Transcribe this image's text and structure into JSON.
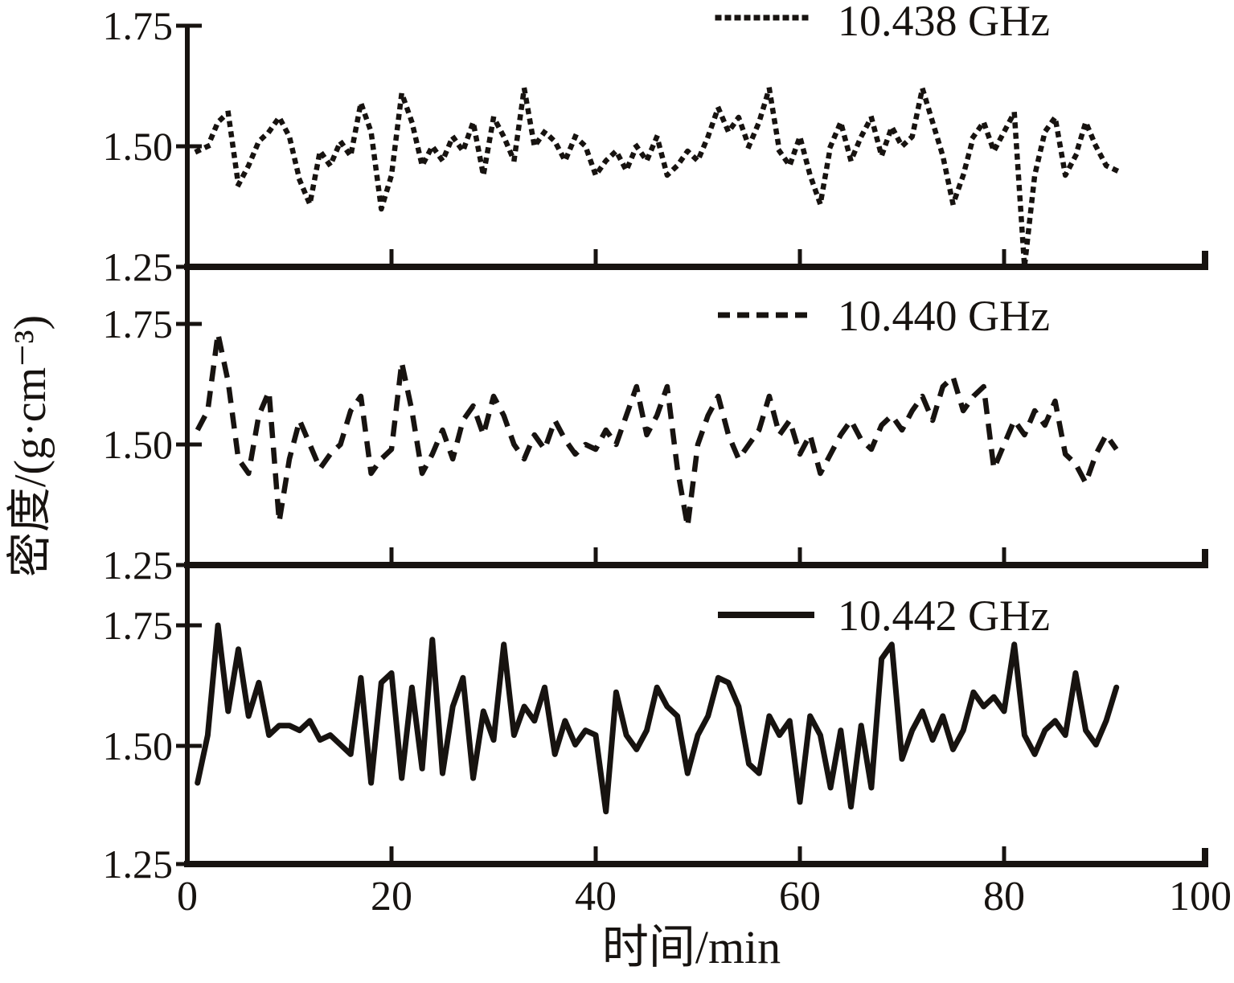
{
  "axes": {
    "y_title": "密度/(g·cm⁻³)",
    "x_title": "时间/min",
    "x_ticks": [
      "0",
      "20",
      "40",
      "60",
      "80",
      "100"
    ],
    "y_ticks": [
      "1.75",
      "1.50",
      "1.25"
    ]
  },
  "legend": {
    "items": [
      {
        "label": "10.438 GHz",
        "style": "dotted"
      },
      {
        "label": "10.440 GHz",
        "style": "dashed"
      },
      {
        "label": "10.442 GHz",
        "style": "solid"
      }
    ]
  },
  "chart_data": {
    "type": "line",
    "layout": "three vertically stacked panels sharing the x-axis, one series per panel, no grid",
    "title": "",
    "xlabel": "时间/min",
    "ylabel": "密度/(g·cm⁻³)",
    "xlim": [
      0,
      100
    ],
    "ylim_each_panel": [
      1.25,
      1.75
    ],
    "x_tick_values": [
      0,
      20,
      40,
      60,
      80,
      100
    ],
    "y_tick_values": [
      1.25,
      1.5,
      1.75
    ],
    "grid": false,
    "legend_position": "top-right inside each panel",
    "line_color": "#171310",
    "x_start": 1,
    "x_step": 1,
    "series": [
      {
        "name": "10.438 GHz",
        "line_style": "dotted",
        "panel": 1,
        "values": [
          1.49,
          1.5,
          1.55,
          1.57,
          1.42,
          1.46,
          1.51,
          1.53,
          1.56,
          1.52,
          1.43,
          1.38,
          1.49,
          1.46,
          1.51,
          1.48,
          1.59,
          1.53,
          1.37,
          1.44,
          1.61,
          1.55,
          1.46,
          1.5,
          1.47,
          1.52,
          1.49,
          1.55,
          1.44,
          1.56,
          1.52,
          1.47,
          1.62,
          1.5,
          1.53,
          1.51,
          1.47,
          1.52,
          1.5,
          1.44,
          1.47,
          1.49,
          1.45,
          1.5,
          1.47,
          1.52,
          1.44,
          1.46,
          1.49,
          1.47,
          1.52,
          1.58,
          1.53,
          1.56,
          1.5,
          1.55,
          1.62,
          1.49,
          1.46,
          1.52,
          1.44,
          1.38,
          1.5,
          1.55,
          1.47,
          1.52,
          1.56,
          1.48,
          1.54,
          1.5,
          1.52,
          1.62,
          1.55,
          1.48,
          1.38,
          1.44,
          1.52,
          1.55,
          1.49,
          1.53,
          1.57,
          1.25,
          1.44,
          1.53,
          1.56,
          1.44,
          1.48,
          1.55,
          1.5,
          1.46,
          1.45
        ]
      },
      {
        "name": "10.440 GHz",
        "line_style": "dashed",
        "panel": 2,
        "values": [
          1.53,
          1.57,
          1.73,
          1.63,
          1.47,
          1.44,
          1.56,
          1.61,
          1.34,
          1.47,
          1.55,
          1.5,
          1.45,
          1.48,
          1.5,
          1.57,
          1.6,
          1.44,
          1.47,
          1.49,
          1.67,
          1.57,
          1.44,
          1.48,
          1.53,
          1.47,
          1.55,
          1.58,
          1.52,
          1.6,
          1.56,
          1.5,
          1.47,
          1.52,
          1.49,
          1.55,
          1.51,
          1.48,
          1.5,
          1.49,
          1.53,
          1.5,
          1.56,
          1.62,
          1.52,
          1.56,
          1.62,
          1.45,
          1.33,
          1.5,
          1.56,
          1.6,
          1.52,
          1.47,
          1.5,
          1.53,
          1.6,
          1.52,
          1.55,
          1.48,
          1.52,
          1.44,
          1.48,
          1.52,
          1.55,
          1.51,
          1.49,
          1.54,
          1.56,
          1.53,
          1.57,
          1.6,
          1.55,
          1.62,
          1.64,
          1.57,
          1.6,
          1.62,
          1.45,
          1.5,
          1.55,
          1.52,
          1.57,
          1.54,
          1.59,
          1.48,
          1.46,
          1.42,
          1.48,
          1.52,
          1.49
        ]
      },
      {
        "name": "10.442 GHz",
        "line_style": "solid",
        "panel": 3,
        "values": [
          1.42,
          1.52,
          1.75,
          1.57,
          1.7,
          1.56,
          1.63,
          1.52,
          1.54,
          1.54,
          1.53,
          1.55,
          1.51,
          1.52,
          1.5,
          1.48,
          1.64,
          1.42,
          1.63,
          1.65,
          1.43,
          1.62,
          1.45,
          1.72,
          1.44,
          1.58,
          1.64,
          1.43,
          1.57,
          1.51,
          1.71,
          1.52,
          1.58,
          1.55,
          1.62,
          1.48,
          1.55,
          1.5,
          1.53,
          1.52,
          1.36,
          1.61,
          1.52,
          1.49,
          1.53,
          1.62,
          1.58,
          1.56,
          1.44,
          1.52,
          1.56,
          1.64,
          1.63,
          1.58,
          1.46,
          1.44,
          1.56,
          1.52,
          1.55,
          1.38,
          1.56,
          1.52,
          1.41,
          1.53,
          1.37,
          1.54,
          1.41,
          1.68,
          1.71,
          1.47,
          1.53,
          1.57,
          1.51,
          1.56,
          1.49,
          1.53,
          1.61,
          1.58,
          1.6,
          1.57,
          1.71,
          1.52,
          1.48,
          1.53,
          1.55,
          1.52,
          1.65,
          1.53,
          1.5,
          1.55,
          1.62
        ]
      }
    ]
  }
}
